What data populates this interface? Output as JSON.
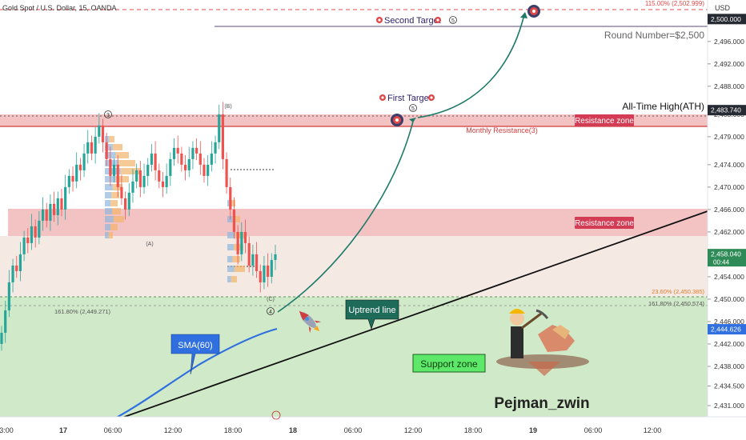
{
  "header": {
    "symbol": "Gold Spot / U.S. Dollar, 15, OANDA"
  },
  "currency": "USD",
  "chart_data": {
    "type": "candlestick",
    "title": "Gold Spot / U.S. Dollar, 15, OANDA",
    "ylim": [
      2428,
      2506
    ],
    "yticks": [
      2431,
      2434.5,
      2438,
      2442,
      2446,
      2450,
      2454,
      2458,
      2462,
      2466,
      2470,
      2474,
      2479,
      2483,
      2488,
      2492,
      2496,
      2500
    ],
    "ytick_labels": [
      "2,431.000",
      "2,434.500",
      "2,438.000",
      "2,442.000",
      "2,446.000",
      "2,450.000",
      "2,454.000",
      "2,458.000",
      "2,462.000",
      "2,466.000",
      "2,470.000",
      "2,474.000",
      "2,479.000",
      "2,483.000",
      "2,488.000",
      "2,492.000",
      "2,496.000",
      "2,500.000"
    ],
    "xticks": [
      "3:00",
      "17",
      "06:00",
      "12:00",
      "18:00",
      "18",
      "06:00",
      "12:00",
      "18:00",
      "19",
      "06:00",
      "12:00"
    ],
    "price_labels": [
      {
        "value": 2500.0,
        "text": "2,500.000",
        "style": "dark"
      },
      {
        "value": 2483.74,
        "text": "2,483.740",
        "style": "dark"
      },
      {
        "value": 2458.04,
        "text": "2,458.040",
        "style": "green",
        "sub": "00:44"
      },
      {
        "value": 2444.626,
        "text": "2,444.626",
        "style": "blue"
      }
    ],
    "close_series": [
      2444,
      2448,
      2453,
      2456,
      2455,
      2458,
      2461,
      2460,
      2463,
      2461,
      2464,
      2466,
      2464,
      2467,
      2465,
      2468,
      2466,
      2470,
      2472,
      2471,
      2474,
      2473,
      2476,
      2478,
      2476,
      2479,
      2481,
      2478,
      2475,
      2472,
      2474,
      2470,
      2468,
      2466,
      2469,
      2471,
      2473,
      2470,
      2472,
      2474,
      2476,
      2473,
      2471,
      2470,
      2472,
      2475,
      2477,
      2476,
      2474,
      2473,
      2475,
      2477,
      2476,
      2474,
      2472,
      2474,
      2476,
      2478,
      2483,
      2475,
      2470,
      2466,
      2462,
      2458,
      2462,
      2460,
      2456,
      2458,
      2455,
      2453,
      2456,
      2454,
      2457,
      2458
    ],
    "sma_label": "SMA(60)",
    "annotations": {
      "second_target": "Second Target",
      "first_target": "First Target",
      "round_number": "Round Number=$2,500",
      "ath": "All-Time High(ATH)",
      "monthly_resistance": "Monthly Resistance(3)",
      "resistance_zone_1": "Resistance zone",
      "resistance_zone_2": "Resistance zone",
      "uptrend_line": "Uptrend line",
      "support_zone": "Support zone",
      "fib_115": "115.00% (2,502.999)",
      "fib_236": "23.60% (2,450.385)",
      "fib_1618_right": "161.80% (2,450.574)",
      "fib_1618_left": "161.80% (2,449.271)",
      "wave_3": "3",
      "wave_b": "(B)",
      "wave_a": "(A)",
      "wave_c": "(C)",
      "wave_4": "4",
      "wave_5a": "5",
      "wave_5b": "5",
      "author": "Pejman_zwin"
    }
  }
}
